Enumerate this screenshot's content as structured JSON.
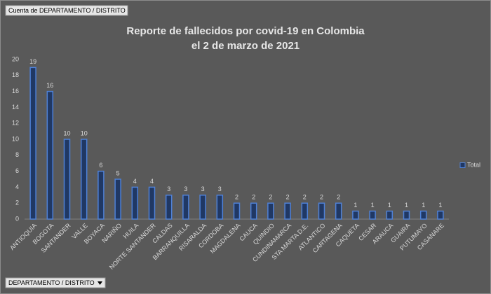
{
  "ui": {
    "field_button": "Cuenta de DEPARTAMENTO / DISTRITO",
    "axis_button": "DEPARTAMENTO / DISTRITO"
  },
  "chart_data": {
    "type": "bar",
    "title": "Reporte de fallecidos por covid-19 en Colombia",
    "subtitle": "el 2 de marzo de 2021",
    "categories": [
      "ANTIOQUIA",
      "BOGOTA",
      "SANTANDER",
      "VALLE",
      "BOYACA",
      "NARIÑO",
      "HUILA",
      "NORTE SANTANDER",
      "CALDAS",
      "BARRANQUILLA",
      "RISARALDA",
      "CORDOBA",
      "MAGDALENA",
      "CAUCA",
      "QUINDIO",
      "CUNDINAMARCA",
      "STA MARTA D.E.",
      "ATLANTICO",
      "CARTAGENA",
      "CAQUETA",
      "CESAR",
      "ARAUCA",
      "GUAIRA",
      "PUTUMAYO",
      "CASANARE"
    ],
    "series": [
      {
        "name": "Total",
        "color": "#203864",
        "values": [
          19,
          16,
          10,
          10,
          6,
          5,
          4,
          4,
          3,
          3,
          3,
          3,
          2,
          2,
          2,
          2,
          2,
          2,
          2,
          1,
          1,
          1,
          1,
          1,
          1
        ]
      }
    ],
    "ylim": [
      0,
      20
    ],
    "yticks": [
      0,
      2,
      4,
      6,
      8,
      10,
      12,
      14,
      16,
      18,
      20
    ],
    "grid": false,
    "legend": "right"
  }
}
